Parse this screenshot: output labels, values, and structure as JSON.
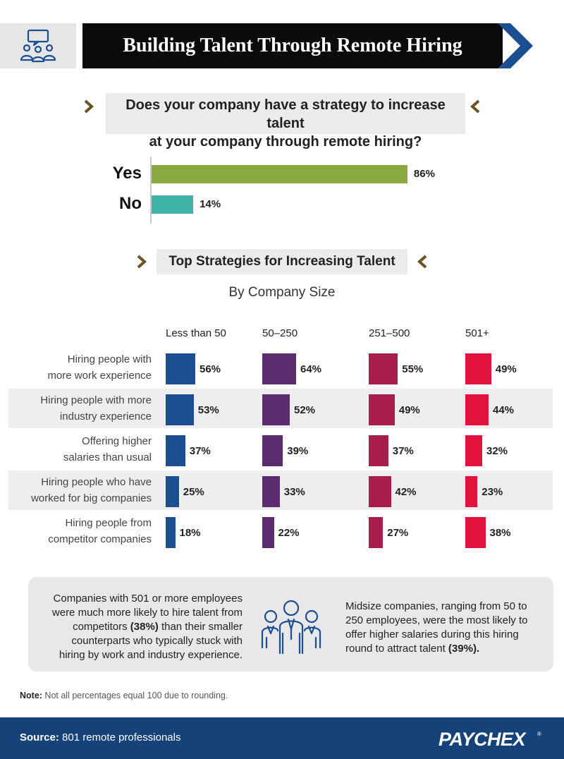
{
  "header": {
    "title": "Building Talent Through Remote Hiring",
    "icon": "meeting-people-icon",
    "accent": "#1c4f91"
  },
  "question": {
    "line1": "Does your company have a strategy to increase talent",
    "line2": "at your company through remote hiring?",
    "chevron_color": "#6b5227"
  },
  "chart_data": [
    {
      "type": "bar",
      "orientation": "horizontal",
      "categories": [
        "Yes",
        "No"
      ],
      "values": [
        86,
        14
      ],
      "value_labels": [
        "86%",
        "14%"
      ],
      "colors": [
        "#8aaa3f",
        "#3fb3a8"
      ],
      "xlim": [
        0,
        100
      ]
    },
    {
      "type": "bar",
      "orientation": "horizontal",
      "title": "Top Strategies for Increasing Talent",
      "subtitle": "By Company Size",
      "categories": [
        "Hiring people with more work experience",
        "Hiring people with more industry experience",
        "Offering higher salaries than usual",
        "Hiring people who have worked for big companies",
        "Hiring people from competitor companies"
      ],
      "category_lines": [
        [
          "Hiring people with",
          "more work experience"
        ],
        [
          "Hiring people with more",
          "industry experience"
        ],
        [
          "Offering higher",
          "salaries than usual"
        ],
        [
          "Hiring people who have",
          "worked for big companies"
        ],
        [
          "Hiring people from",
          "competitor companies"
        ]
      ],
      "series": [
        {
          "name": "Less than 50",
          "values": [
            56,
            53,
            37,
            25,
            18
          ],
          "color": "#1c4f91"
        },
        {
          "name": "50–250",
          "values": [
            64,
            52,
            39,
            33,
            22
          ],
          "color": "#5b2d6e"
        },
        {
          "name": "251–500",
          "values": [
            55,
            49,
            37,
            42,
            27
          ],
          "color": "#a81d4d"
        },
        {
          "name": "501+",
          "values": [
            49,
            44,
            32,
            23,
            38
          ],
          "color": "#e3113d"
        }
      ],
      "xlim": [
        0,
        100
      ],
      "grid": false
    }
  ],
  "callout": {
    "left": [
      {
        "t": "Companies with 501 or more employees"
      },
      {
        "t": "were much more likely to hire talent from"
      },
      {
        "t": "competitors ",
        "b": "(38%)",
        "t2": " than their smaller"
      },
      {
        "t": "counterparts who typically stuck with"
      },
      {
        "t": "hiring by work and industry experience."
      }
    ],
    "right": [
      {
        "t": "Midsize companies, ranging from 50 to"
      },
      {
        "t": "250 employees, were the most likely to"
      },
      {
        "t": "offer higher salaries during this hiring"
      },
      {
        "t": "round to attract talent ",
        "b": "(39%)."
      }
    ],
    "icon": "business-team-icon"
  },
  "note": {
    "label": "Note:",
    "text": " Not all percentages equal 100 due to rounding."
  },
  "footer": {
    "source_label": "Source:",
    "source_text": " 801 remote professionals",
    "logo": "PAYCHEX",
    "background": "#16427a"
  }
}
